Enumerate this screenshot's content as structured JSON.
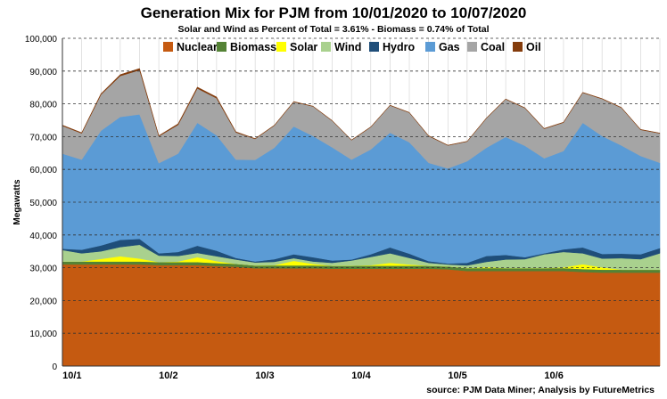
{
  "chart_data": {
    "type": "area",
    "stacked": true,
    "title": "Generation Mix for PJM from 10/01/2020  to 10/07/2020",
    "subtitle": "Solar and Wind as Percent of Total = 3.61%  -  Biomass = 0.74% of Total",
    "xlabel": "",
    "ylabel": "Megawatts",
    "ylim": [
      0,
      100000
    ],
    "yticks": [
      0,
      10000,
      20000,
      30000,
      40000,
      50000,
      60000,
      70000,
      80000,
      90000,
      100000
    ],
    "ytick_labels": [
      "0",
      "10,000",
      "20,000",
      "30,000",
      "40,000",
      "50,000",
      "60,000",
      "70,000",
      "80,000",
      "90,000",
      "100,000"
    ],
    "xlim": [
      0,
      6.2
    ],
    "xtick_positions": [
      0.1,
      1.1,
      2.1,
      3.1,
      4.1,
      5.1
    ],
    "xtick_labels": [
      "10/1",
      "10/2",
      "10/3",
      "10/4",
      "10/5",
      "10/6"
    ],
    "grid": "horizontal dashed",
    "legend_position": "top",
    "x": [
      0.0,
      0.2,
      0.4,
      0.6,
      0.8,
      1.0,
      1.2,
      1.4,
      1.6,
      1.8,
      2.0,
      2.2,
      2.4,
      2.6,
      2.8,
      3.0,
      3.2,
      3.4,
      3.6,
      3.8,
      4.0,
      4.2,
      4.4,
      4.6,
      4.8,
      5.0,
      5.2,
      5.4,
      5.6,
      5.8,
      6.0,
      6.2
    ],
    "series": [
      {
        "name": "Nuclear",
        "color": "#C55A11",
        "values": [
          31000,
          31000,
          31000,
          31000,
          31000,
          30800,
          30800,
          30800,
          30500,
          30300,
          29800,
          29800,
          29800,
          29800,
          29700,
          29700,
          29700,
          29700,
          29700,
          29700,
          29500,
          29000,
          29000,
          29000,
          29000,
          29000,
          29000,
          28700,
          28500,
          28500,
          28500,
          28500
        ]
      },
      {
        "name": "Biomass",
        "color": "#548235",
        "values": [
          900,
          900,
          900,
          900,
          900,
          900,
          900,
          900,
          900,
          900,
          900,
          900,
          900,
          900,
          900,
          900,
          900,
          900,
          900,
          900,
          900,
          900,
          900,
          900,
          900,
          900,
          900,
          900,
          900,
          900,
          900,
          900
        ]
      },
      {
        "name": "Solar",
        "color": "#FFFF00",
        "values": [
          0,
          0,
          800,
          1600,
          900,
          0,
          200,
          1500,
          600,
          0,
          0,
          100,
          1400,
          500,
          0,
          0,
          200,
          900,
          400,
          0,
          0,
          0,
          300,
          0,
          0,
          0,
          200,
          1500,
          700,
          0,
          0,
          0
        ]
      },
      {
        "name": "Wind",
        "color": "#A9D18E",
        "values": [
          3500,
          2500,
          2300,
          2800,
          4200,
          2000,
          1700,
          1300,
          1500,
          1300,
          900,
          1000,
          800,
          700,
          900,
          1600,
          2500,
          2900,
          2000,
          900,
          600,
          800,
          1600,
          2600,
          2700,
          4200,
          4700,
          3300,
          2700,
          3500,
          3200,
          5000
        ]
      },
      {
        "name": "Hydro",
        "color": "#1F4E79",
        "values": [
          400,
          1100,
          1800,
          2200,
          1800,
          700,
          1200,
          2200,
          1700,
          500,
          300,
          800,
          1200,
          1300,
          700,
          300,
          800,
          1800,
          1300,
          500,
          300,
          800,
          1800,
          1400,
          600,
          300,
          800,
          1800,
          1400,
          1400,
          1500,
          1600
        ]
      },
      {
        "name": "Gas",
        "color": "#5B9BD5",
        "values": [
          29000,
          27500,
          35000,
          37500,
          38000,
          27500,
          30000,
          37500,
          35200,
          30000,
          31000,
          34000,
          39000,
          37000,
          34500,
          30500,
          32000,
          35000,
          34000,
          30000,
          29000,
          31000,
          33000,
          36000,
          34000,
          29000,
          30000,
          38000,
          36000,
          33000,
          30000,
          26000
        ]
      },
      {
        "name": "Coal",
        "color": "#A5A5A5",
        "values": [
          8500,
          8000,
          11000,
          12500,
          13500,
          8200,
          8800,
          10500,
          11300,
          8300,
          6400,
          6800,
          7500,
          9000,
          8100,
          5900,
          6800,
          8300,
          9000,
          8200,
          7000,
          6000,
          9000,
          11500,
          11500,
          9000,
          8700,
          9200,
          11300,
          11500,
          8000,
          9000
        ]
      },
      {
        "name": "Oil",
        "color": "#843C0C",
        "values": [
          200,
          200,
          300,
          400,
          500,
          200,
          300,
          400,
          400,
          200,
          100,
          100,
          100,
          100,
          100,
          100,
          100,
          100,
          100,
          100,
          100,
          100,
          100,
          100,
          100,
          100,
          100,
          100,
          100,
          100,
          100,
          100
        ]
      }
    ],
    "source": "source: PJM Data Miner; Analysis by FutureMetrics"
  }
}
